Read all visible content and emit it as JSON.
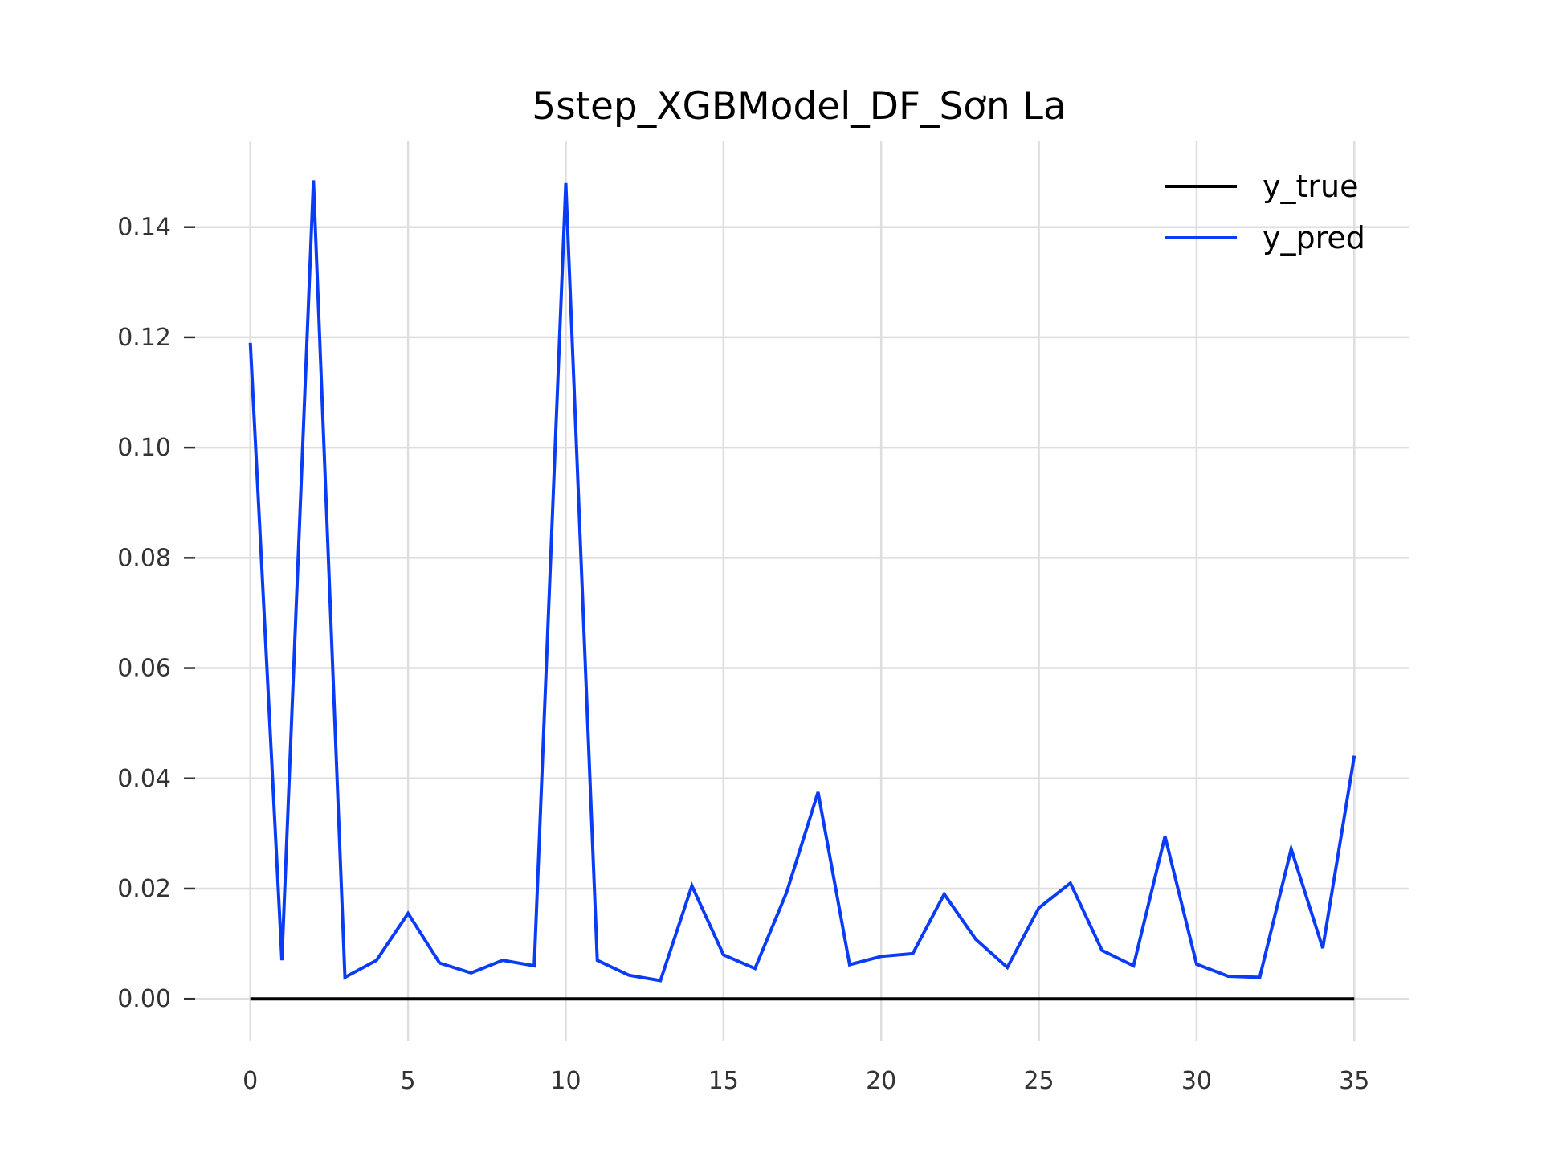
{
  "chart_data": {
    "type": "line",
    "title": "5step_XGBModel_DF_Sơn La",
    "xlabel": "",
    "ylabel": "",
    "xlim": [
      -1.75,
      36.75
    ],
    "ylim": [
      -0.0077,
      0.1557
    ],
    "x_ticks": [
      0,
      5,
      10,
      15,
      20,
      25,
      30,
      35
    ],
    "x_tick_labels": [
      "0",
      "5",
      "10",
      "15",
      "20",
      "25",
      "30",
      "35"
    ],
    "y_ticks": [
      0.0,
      0.02,
      0.04,
      0.06,
      0.08,
      0.1,
      0.12,
      0.14
    ],
    "y_tick_labels": [
      "0.00",
      "0.02",
      "0.04",
      "0.06",
      "0.08",
      "0.10",
      "0.12",
      "0.14"
    ],
    "grid": true,
    "legend_position": "top-right",
    "x": [
      0,
      1,
      2,
      3,
      4,
      5,
      6,
      7,
      8,
      9,
      10,
      11,
      12,
      13,
      14,
      15,
      16,
      17,
      18,
      19,
      20,
      21,
      22,
      23,
      24,
      25,
      26,
      27,
      28,
      29,
      30,
      31,
      32,
      33,
      34,
      35
    ],
    "series": [
      {
        "name": "y_true",
        "color": "#000000",
        "values": [
          0,
          0,
          0,
          0,
          0,
          0,
          0,
          0,
          0,
          0,
          0,
          0,
          0,
          0,
          0,
          0,
          0,
          0,
          0,
          0,
          0,
          0,
          0,
          0,
          0,
          0,
          0,
          0,
          0,
          0,
          0,
          0,
          0,
          0,
          0,
          0
        ]
      },
      {
        "name": "y_pred",
        "color": "#0a3cf5",
        "values": [
          0.119,
          0.007,
          0.1485,
          0.0039,
          0.007,
          0.0155,
          0.0065,
          0.0047,
          0.007,
          0.006,
          0.148,
          0.007,
          0.0043,
          0.0033,
          0.0205,
          0.008,
          0.0055,
          0.0193,
          0.0375,
          0.0062,
          0.0077,
          0.0082,
          0.019,
          0.0108,
          0.0057,
          0.0165,
          0.021,
          0.0088,
          0.006,
          0.0295,
          0.0063,
          0.0041,
          0.0039,
          0.0272,
          0.0092,
          0.0441
        ]
      }
    ]
  }
}
